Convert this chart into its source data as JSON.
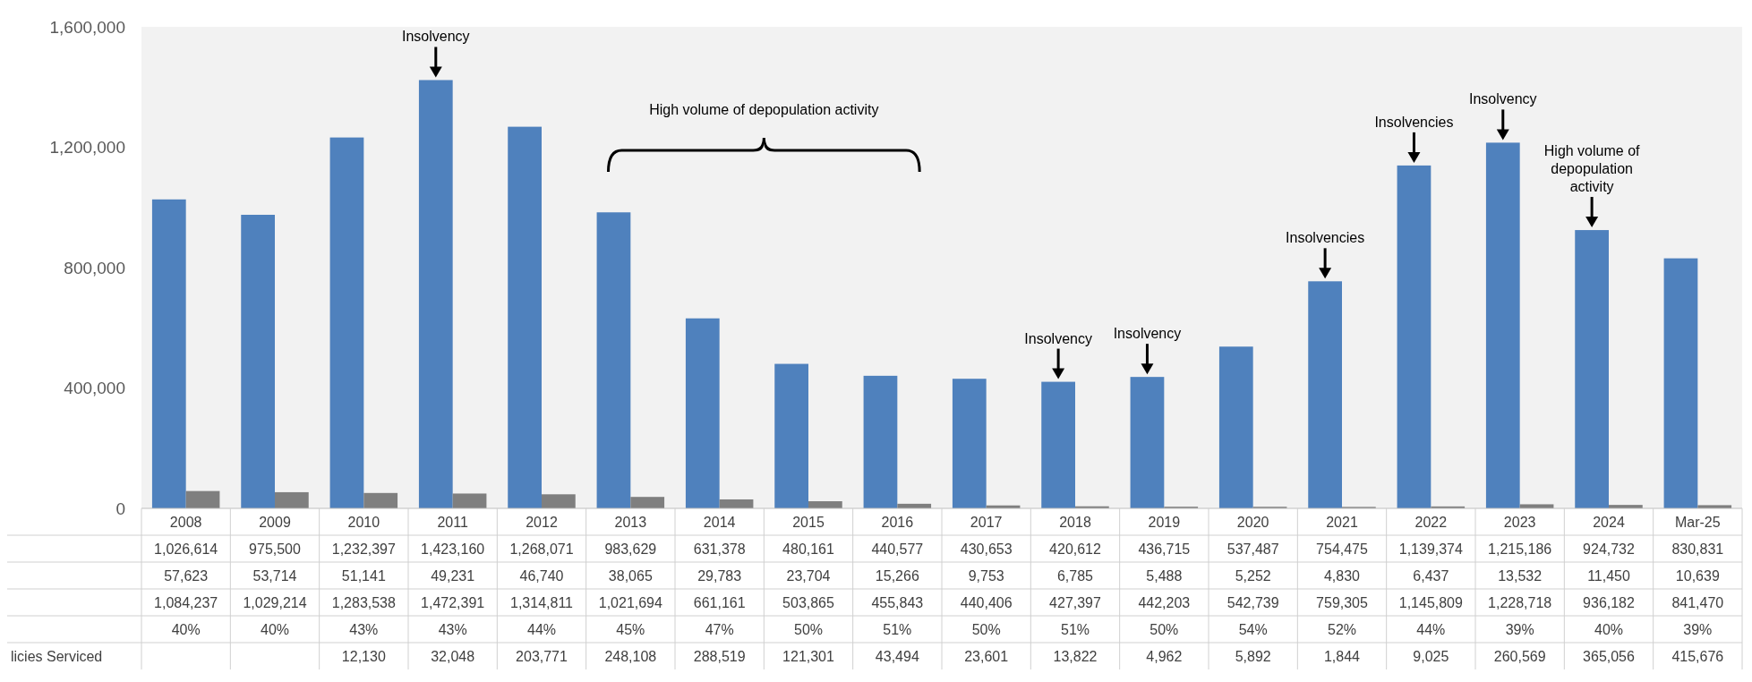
{
  "chart_data": {
    "type": "bar",
    "categories": [
      "2008",
      "2009",
      "2010",
      "2011",
      "2012",
      "2013",
      "2014",
      "2015",
      "2016",
      "2017",
      "2018",
      "2019",
      "2020",
      "2021",
      "2022",
      "2023",
      "2024",
      "Mar-25"
    ],
    "series": [
      {
        "color": "#4f81bd",
        "values": [
          1026614,
          975500,
          1232397,
          1423160,
          1268071,
          983629,
          631378,
          480161,
          440577,
          430653,
          420612,
          436715,
          537487,
          754475,
          1139374,
          1215186,
          924732,
          830831
        ],
        "value_labels": [
          "1,026,614",
          "975,500",
          "1,232,397",
          "1,423,160",
          "1,268,071",
          "983,629",
          "631,378",
          "480,161",
          "440,577",
          "430,653",
          "420,612",
          "436,715",
          "537,487",
          "754,475",
          "1,139,374",
          "1,215,186",
          "924,732",
          "830,831"
        ]
      },
      {
        "color": "#7f7f7f",
        "values": [
          57623,
          53714,
          51141,
          49231,
          46740,
          38065,
          29783,
          23704,
          15266,
          9753,
          6785,
          5488,
          5252,
          4830,
          6437,
          13532,
          11450,
          10639
        ],
        "value_labels": [
          "57,623",
          "53,714",
          "51,141",
          "49,231",
          "46,740",
          "38,065",
          "29,783",
          "23,704",
          "15,266",
          "9,753",
          "6,785",
          "5,488",
          "5,252",
          "4,830",
          "6,437",
          "13,532",
          "11,450",
          "10,639"
        ]
      }
    ],
    "ylim": [
      0,
      1600000
    ],
    "yticks": [
      {
        "value": 0,
        "label": "0"
      },
      {
        "value": 400000,
        "label": "400,000"
      },
      {
        "value": 800000,
        "label": "800,000"
      },
      {
        "value": 1200000,
        "label": "1,200,000"
      },
      {
        "value": 1600000,
        "label": "1,600,000"
      }
    ],
    "annotations": [
      "High volume of depopulation activity",
      "licies Serviced",
      {
        "text": "Insolvency",
        "x": "2011",
        "y": 1423160
      },
      {
        "text": "Insolvency",
        "x": "2018",
        "y": 420612
      },
      {
        "text": "Insolvency",
        "x": "2019",
        "y": 436715
      },
      {
        "text": "Insolvencies",
        "x": "2021",
        "y": 754475
      },
      {
        "text": "Insolvencies",
        "x": "2022",
        "y": 1139374
      },
      {
        "text": "Insolvency",
        "x": "2023",
        "y": 1215186
      },
      {
        "text": "High volume of depopulation activity",
        "x": "2024",
        "y": 924732
      },
      "1,084,237",
      "1,029,214",
      "1,283,538",
      "1,472,391",
      "1,314,811",
      "1,021,694",
      "661,161",
      "503,865",
      "455,843",
      "440,406",
      "427,397",
      "442,203",
      "542,739",
      "759,305",
      "1,145,809",
      "1,228,718",
      "936,182",
      "841,470",
      "40%",
      "40%",
      "43%",
      "43%",
      "44%",
      "45%",
      "47%",
      "50%",
      "51%",
      "50%",
      "51%",
      "50%",
      "54%",
      "52%",
      "44%",
      "39%",
      "40%",
      "39%",
      "12,130",
      "32,048",
      "203,771",
      "248,108",
      "288,519",
      "121,301",
      "43,494",
      "23,601",
      "13,822",
      "4,962",
      "5,892",
      "1,844",
      "9,025",
      "260,569",
      "365,056",
      "415,676"
    ]
  }
}
